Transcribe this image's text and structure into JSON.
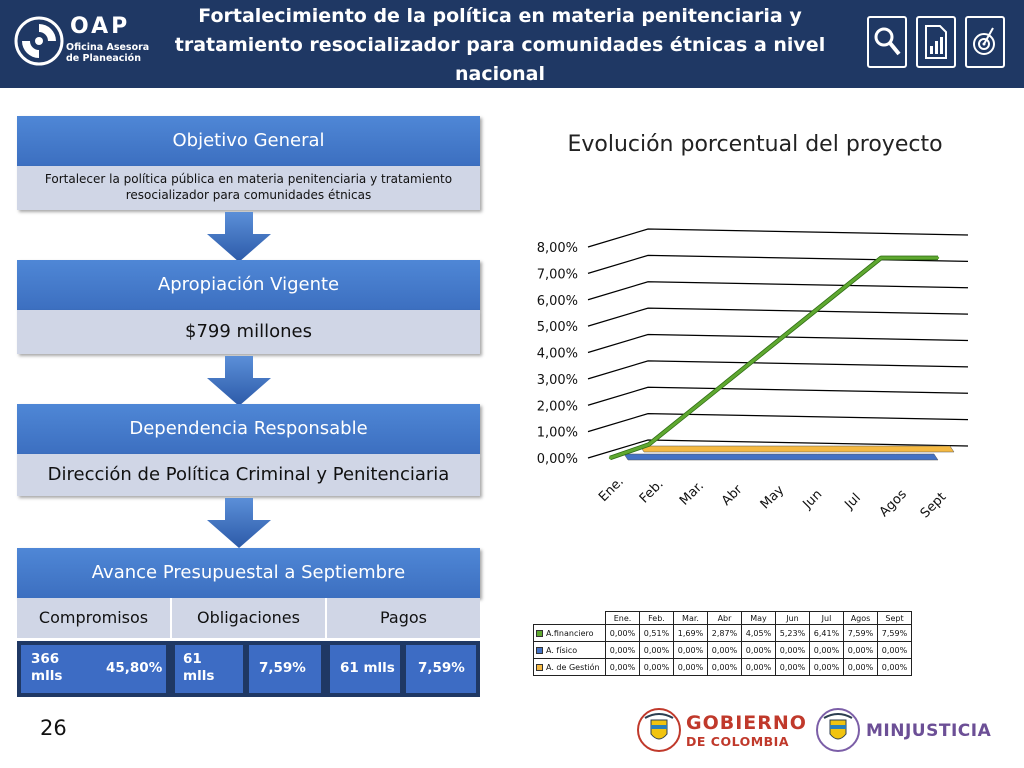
{
  "header": {
    "logo_title": "OAP",
    "logo_line1": "Oficina Asesora",
    "logo_line2": "de Planeación",
    "title": "Fortalecimiento de la política en materia penitenciaria y tratamiento resocializador para comunidades étnicas a nivel nacional",
    "icons": [
      "magnifier-icon",
      "report-document-icon",
      "target-icon"
    ]
  },
  "objetivo": {
    "title": "Objetivo General",
    "text": "Fortalecer la política pública en materia penitenciaria y tratamiento resocializador para comunidades étnicas"
  },
  "apropiacion": {
    "title": "Apropiación Vigente",
    "value": "$799 millones"
  },
  "dependencia": {
    "title": "Dependencia Responsable",
    "value": "Dirección de Política Criminal y Penitenciaria"
  },
  "avance": {
    "title": "Avance Presupuestal a Septiembre",
    "columns": [
      "Compromisos",
      "Obligaciones",
      "Pagos"
    ],
    "compromisos_amount": "366 mlls",
    "compromisos_pct": "45,80%",
    "obligaciones_amount": "61 mlls",
    "obligaciones_pct": "7,59%",
    "pagos_amount": "61 mlls",
    "pagos_pct": "7,59%"
  },
  "colors": {
    "header_bg": "#1f3864",
    "block_blue": "#3c6fc0",
    "block_light": "#d0d6e6",
    "financiero": "#5fa830",
    "fisico": "#4472c4",
    "gestion": "#f5b942"
  },
  "chart_data": {
    "type": "line",
    "title": "Evolución porcentual del proyecto",
    "categories": [
      "Ene.",
      "Feb.",
      "Mar.",
      "Abr",
      "May",
      "Jun",
      "Jul",
      "Agos",
      "Sept"
    ],
    "ylim": [
      0,
      8
    ],
    "yticks": [
      "0,00%",
      "1,00%",
      "2,00%",
      "3,00%",
      "4,00%",
      "5,00%",
      "6,00%",
      "7,00%",
      "8,00%"
    ],
    "series": [
      {
        "name": "A.financiero",
        "values": [
          0.0,
          0.51,
          1.69,
          2.87,
          4.05,
          5.23,
          6.41,
          7.59,
          7.59
        ],
        "labels": [
          "0,00%",
          "0,51%",
          "1,69%",
          "2,87%",
          "4,05%",
          "5,23%",
          "6,41%",
          "7,59%",
          "7,59%"
        ]
      },
      {
        "name": "A. físico",
        "values": [
          0,
          0,
          0,
          0,
          0,
          0,
          0,
          0,
          0
        ],
        "labels": [
          "0,00%",
          "0,00%",
          "0,00%",
          "0,00%",
          "0,00%",
          "0,00%",
          "0,00%",
          "0,00%",
          "0,00%"
        ]
      },
      {
        "name": "A. de Gestión",
        "values": [
          0,
          0,
          0,
          0,
          0,
          0,
          0,
          0,
          0
        ],
        "labels": [
          "0,00%",
          "0,00%",
          "0,00%",
          "0,00%",
          "0,00%",
          "0,00%",
          "0,00%",
          "0,00%",
          "0,00%"
        ]
      }
    ],
    "legend": "table-below",
    "grid": true
  },
  "footer": {
    "page_number": "26",
    "gov_line1": "GOBIERNO",
    "gov_line2": "DE COLOMBIA",
    "minjusticia": "MINJUSTICIA"
  }
}
